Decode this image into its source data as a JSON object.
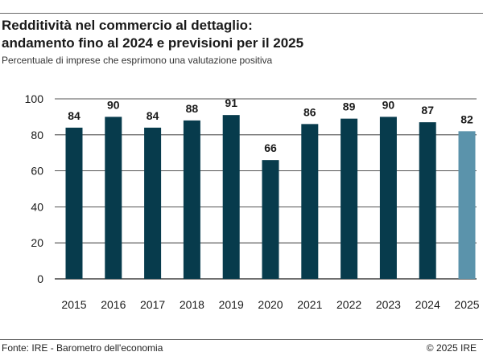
{
  "header": {
    "title_line1": "Redditività nel commercio al dettaglio:",
    "title_line2": "andamento fino al 2024 e previsioni per il 2025",
    "subtitle": "Percentuale di imprese che esprimono una valutazione positiva"
  },
  "footer": {
    "source": "Fonte: IRE - Barometro dell'economia",
    "copyright": "© 2025 IRE"
  },
  "chart_data": {
    "type": "bar",
    "title": "Redditività nel commercio al dettaglio: andamento fino al 2024 e previsioni per il 2025",
    "subtitle": "Percentuale di imprese che esprimono una valutazione positiva",
    "categories": [
      "2015",
      "2016",
      "2017",
      "2018",
      "2019",
      "2020",
      "2021",
      "2022",
      "2023",
      "2024",
      "2025"
    ],
    "values": [
      84,
      90,
      84,
      88,
      91,
      66,
      86,
      89,
      90,
      87,
      82
    ],
    "forecast_categories": [
      "2025"
    ],
    "yticks": [
      0,
      20,
      40,
      60,
      80,
      100
    ],
    "ylim": [
      0,
      100
    ],
    "grid": "horizontal",
    "colors": {
      "actual": "#073b4c",
      "forecast": "#5b93ab",
      "grid": "#1a1a1a",
      "text": "#1a1a1a"
    }
  }
}
